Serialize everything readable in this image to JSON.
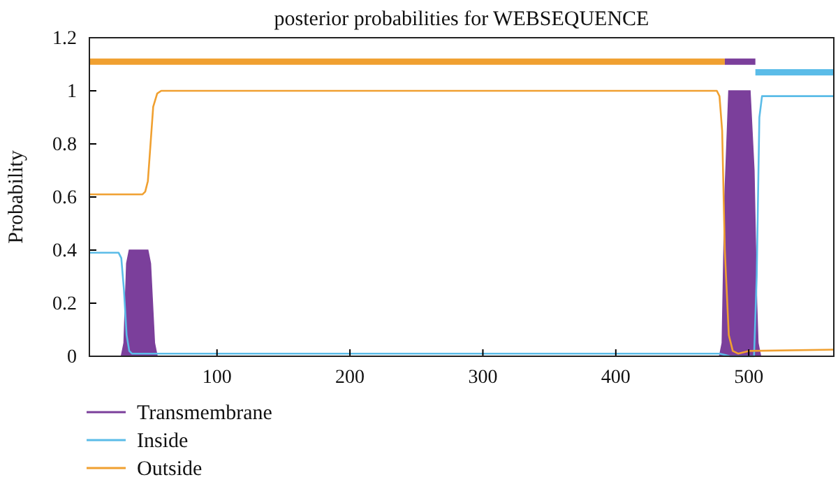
{
  "chart_data": {
    "type": "line",
    "title": "posterior probabilities for WEBSEQUENCE",
    "ylabel": "Probability",
    "xlim": [
      4,
      564
    ],
    "ylim": [
      0,
      1.2
    ],
    "xticks": [
      100,
      200,
      300,
      400,
      500
    ],
    "yticks": [
      0,
      0.2,
      0.4,
      0.6,
      0.8,
      1,
      1.2
    ],
    "grid": false,
    "legend": "bottom left",
    "line_style": "solid",
    "marker": "none",
    "series": [
      {
        "name": "Transmembrane",
        "type": "area",
        "color": "#7b3f9b",
        "x": [
          4,
          28,
          30,
          32,
          34,
          48,
          50,
          52,
          53,
          55,
          478,
          480,
          482,
          485,
          501,
          504,
          506,
          507,
          509,
          564
        ],
        "values": [
          0,
          0,
          0.05,
          0.35,
          0.4,
          0.4,
          0.35,
          0.15,
          0.05,
          0,
          0,
          0.05,
          0.6,
          1,
          1,
          0.7,
          0.2,
          0.05,
          0,
          0
        ]
      },
      {
        "name": "Inside",
        "color": "#5bbce8",
        "x": [
          4,
          26,
          28,
          30,
          32,
          34,
          36,
          478,
          482,
          486,
          504,
          506,
          508,
          510,
          564
        ],
        "values": [
          0.39,
          0.39,
          0.37,
          0.25,
          0.08,
          0.02,
          0.01,
          0.01,
          0.005,
          0,
          0,
          0.3,
          0.9,
          0.98,
          0.98
        ]
      },
      {
        "name": "Outside",
        "color": "#f0a030",
        "x": [
          4,
          44,
          46,
          48,
          50,
          52,
          55,
          58,
          476,
          478,
          480,
          482,
          485,
          488,
          492,
          500,
          564
        ],
        "values": [
          0.61,
          0.61,
          0.62,
          0.66,
          0.8,
          0.94,
          0.99,
          1,
          1,
          0.98,
          0.85,
          0.4,
          0.08,
          0.02,
          0.01,
          0.02,
          0.025
        ]
      },
      {
        "type": "line",
        "color": "#f0a030",
        "x": [
          4,
          482
        ],
        "values": [
          1.11,
          1.11
        ]
      },
      {
        "type": "line",
        "color": "#7b3f9b",
        "x": [
          482,
          505
        ],
        "values": [
          1.11,
          1.11
        ]
      },
      {
        "type": "line",
        "color": "#5bbce8",
        "x": [
          505,
          564
        ],
        "values": [
          1.07,
          1.07
        ]
      }
    ]
  }
}
